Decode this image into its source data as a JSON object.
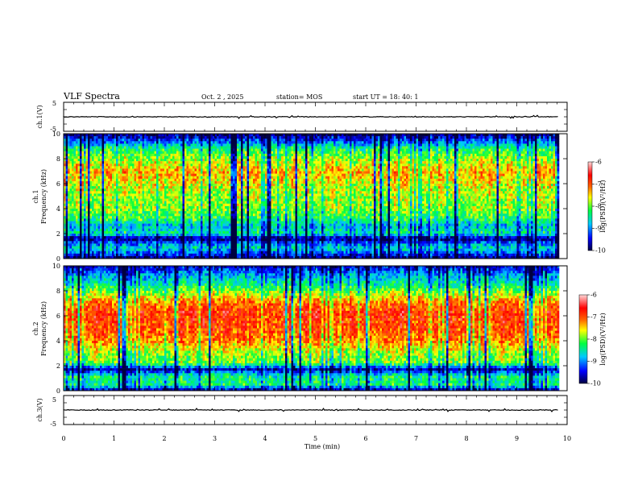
{
  "header": {
    "title": "VLF Spectra",
    "date": "Oct. 2 , 2025",
    "station": "station= MOS",
    "start_ut": "start UT =   18: 40: 1"
  },
  "chart_data": [
    {
      "name": "ch1-waveform",
      "type": "line",
      "ylabel": "ch.1(V)",
      "ylim": [
        -5,
        5
      ],
      "yticks": [
        "5",
        "-5"
      ],
      "baseline": 0,
      "xlim": [
        0,
        10
      ]
    },
    {
      "name": "ch1-spectrogram",
      "type": "heatmap",
      "ylabel_line1": "ch.1",
      "ylabel_line2": "Frequency (kHz)",
      "ylim": [
        0,
        10
      ],
      "yticks": [
        "0",
        "2",
        "4",
        "6",
        "8",
        "10"
      ],
      "xlim": [
        0,
        10
      ],
      "band_profile": [
        {
          "f": 0.0,
          "v": -9.8
        },
        {
          "f": 0.3,
          "v": -9.4
        },
        {
          "f": 0.8,
          "v": -8.6
        },
        {
          "f": 1.2,
          "v": -9.0
        },
        {
          "f": 1.6,
          "v": -9.9
        },
        {
          "f": 2.0,
          "v": -8.4
        },
        {
          "f": 2.6,
          "v": -8.8
        },
        {
          "f": 3.2,
          "v": -8.2
        },
        {
          "f": 4.0,
          "v": -7.9
        },
        {
          "f": 5.0,
          "v": -7.8
        },
        {
          "f": 6.0,
          "v": -7.6
        },
        {
          "f": 6.8,
          "v": -7.3
        },
        {
          "f": 7.5,
          "v": -7.6
        },
        {
          "f": 8.2,
          "v": -7.9
        },
        {
          "f": 8.8,
          "v": -8.3
        },
        {
          "f": 9.3,
          "v": -9.0
        },
        {
          "f": 10.0,
          "v": -9.9
        }
      ]
    },
    {
      "name": "ch2-spectrogram",
      "type": "heatmap",
      "ylabel_line1": "ch.2",
      "ylabel_line2": "Frequency (kHz)",
      "ylim": [
        0,
        10
      ],
      "yticks": [
        "0",
        "2",
        "4",
        "6",
        "8",
        "10"
      ],
      "xlim": [
        0,
        10
      ],
      "band_profile": [
        {
          "f": 0.0,
          "v": -9.8
        },
        {
          "f": 0.5,
          "v": -8.3
        },
        {
          "f": 1.2,
          "v": -8.4
        },
        {
          "f": 1.7,
          "v": -9.6
        },
        {
          "f": 2.2,
          "v": -8.0
        },
        {
          "f": 3.0,
          "v": -7.8
        },
        {
          "f": 3.8,
          "v": -7.3
        },
        {
          "f": 4.6,
          "v": -7.0
        },
        {
          "f": 5.5,
          "v": -6.9
        },
        {
          "f": 6.3,
          "v": -6.8
        },
        {
          "f": 7.0,
          "v": -7.1
        },
        {
          "f": 7.8,
          "v": -7.8
        },
        {
          "f": 8.5,
          "v": -8.4
        },
        {
          "f": 9.3,
          "v": -8.9
        },
        {
          "f": 10.0,
          "v": -9.6
        }
      ]
    },
    {
      "name": "ch3-waveform",
      "type": "line",
      "ylabel": "ch.3(V)",
      "ylim": [
        -5,
        5
      ],
      "yticks": [
        "5",
        "-5"
      ],
      "baseline": 0,
      "xlim": [
        0,
        10
      ]
    }
  ],
  "colorbar": {
    "label": "log(PSD)(V²/Hz)",
    "ticks": [
      "-6",
      "-7",
      "-8",
      "-9",
      "-10"
    ],
    "range": [
      -10,
      -6
    ]
  },
  "time_axis": {
    "label": "Time  (min)",
    "ticks": [
      "0",
      "1",
      "2",
      "3",
      "4",
      "5",
      "6",
      "7",
      "8",
      "9",
      "10"
    ]
  },
  "colors": {
    "c0": "#000040",
    "c1": "#0000ff",
    "c2": "#00c8ff",
    "c3": "#00ff40",
    "c4": "#ffff00",
    "c5": "#ff6400",
    "c6": "#ff0000",
    "c7": "#ffc8c8"
  }
}
